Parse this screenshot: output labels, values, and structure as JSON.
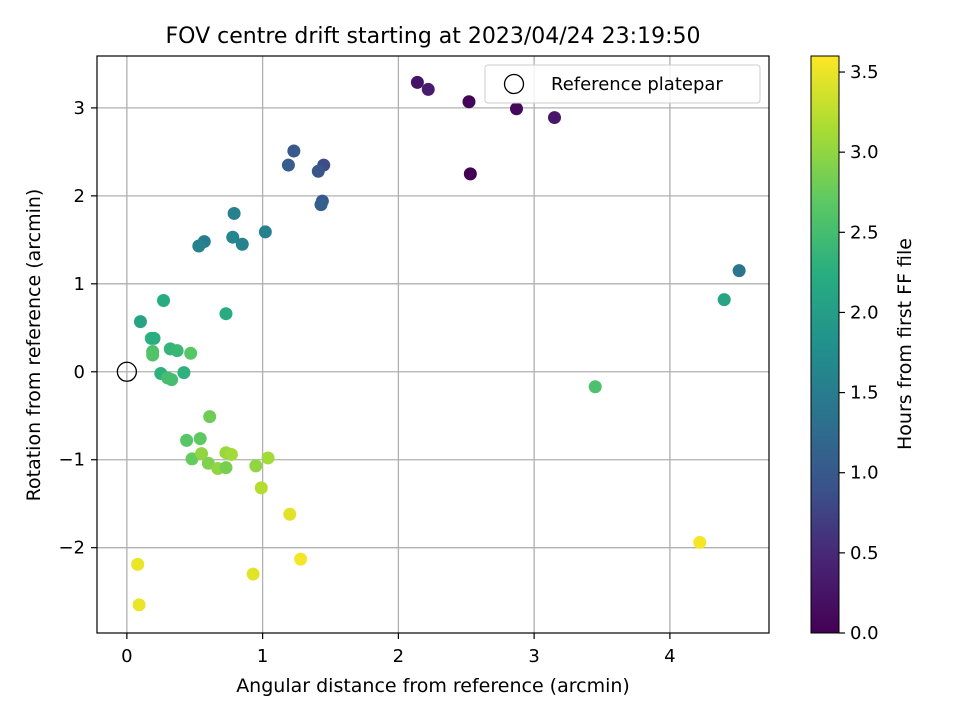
{
  "chart_data": {
    "type": "scatter",
    "title": "FOV centre drift starting at 2023/04/24 23:19:50",
    "xlabel": "Angular distance from reference (arcmin)",
    "ylabel": "Rotation from reference (arcmin)",
    "xlim": [
      -0.22,
      4.73
    ],
    "ylim": [
      -2.97,
      3.59
    ],
    "xticks": [
      0,
      1,
      2,
      3,
      4
    ],
    "yticks": [
      -2,
      -1,
      0,
      1,
      2,
      3
    ],
    "grid": true,
    "legend": {
      "placement": "top-right",
      "entries": [
        {
          "label": "Reference platepar",
          "marker": "open-circle"
        }
      ]
    },
    "reference_point": {
      "x": 0,
      "y": 0
    },
    "colorbar": {
      "label": "Hours from first FF file",
      "colormap": "viridis",
      "range": [
        0,
        3.6
      ],
      "ticks": [
        0.0,
        0.5,
        1.0,
        1.5,
        2.0,
        2.5,
        3.0,
        3.5
      ]
    },
    "points": [
      {
        "x": 2.14,
        "y": 3.29,
        "hours": 0.25
      },
      {
        "x": 2.22,
        "y": 3.21,
        "hours": 0.35
      },
      {
        "x": 2.52,
        "y": 3.07,
        "hours": 0.05
      },
      {
        "x": 2.87,
        "y": 2.99,
        "hours": 0.1
      },
      {
        "x": 3.15,
        "y": 2.89,
        "hours": 0.3
      },
      {
        "x": 2.53,
        "y": 2.25,
        "hours": 0.0
      },
      {
        "x": 1.23,
        "y": 2.51,
        "hours": 1.0
      },
      {
        "x": 1.19,
        "y": 2.35,
        "hours": 1.05
      },
      {
        "x": 1.45,
        "y": 2.35,
        "hours": 0.85
      },
      {
        "x": 1.41,
        "y": 2.28,
        "hours": 0.95
      },
      {
        "x": 1.44,
        "y": 1.94,
        "hours": 1.0
      },
      {
        "x": 1.43,
        "y": 1.9,
        "hours": 1.1
      },
      {
        "x": 0.79,
        "y": 1.8,
        "hours": 1.55
      },
      {
        "x": 0.57,
        "y": 1.48,
        "hours": 1.5
      },
      {
        "x": 0.53,
        "y": 1.43,
        "hours": 1.6
      },
      {
        "x": 0.78,
        "y": 1.53,
        "hours": 1.65
      },
      {
        "x": 0.85,
        "y": 1.45,
        "hours": 1.6
      },
      {
        "x": 1.02,
        "y": 1.59,
        "hours": 1.55
      },
      {
        "x": 4.51,
        "y": 1.15,
        "hours": 1.4
      },
      {
        "x": 4.4,
        "y": 0.82,
        "hours": 2.1
      },
      {
        "x": 0.27,
        "y": 0.81,
        "hours": 2.2
      },
      {
        "x": 0.1,
        "y": 0.57,
        "hours": 2.1
      },
      {
        "x": 0.73,
        "y": 0.66,
        "hours": 2.2
      },
      {
        "x": 0.18,
        "y": 0.38,
        "hours": 2.3
      },
      {
        "x": 0.2,
        "y": 0.38,
        "hours": 2.25
      },
      {
        "x": 0.19,
        "y": 0.23,
        "hours": 2.55
      },
      {
        "x": 0.19,
        "y": 0.19,
        "hours": 2.6
      },
      {
        "x": 0.32,
        "y": 0.26,
        "hours": 2.35
      },
      {
        "x": 0.37,
        "y": 0.24,
        "hours": 2.4
      },
      {
        "x": 0.47,
        "y": 0.21,
        "hours": 2.65
      },
      {
        "x": 0.25,
        "y": -0.02,
        "hours": 2.3
      },
      {
        "x": 0.3,
        "y": -0.07,
        "hours": 2.5
      },
      {
        "x": 0.33,
        "y": -0.09,
        "hours": 2.5
      },
      {
        "x": 0.42,
        "y": -0.01,
        "hours": 2.3
      },
      {
        "x": 3.45,
        "y": -0.17,
        "hours": 2.55
      },
      {
        "x": 0.61,
        "y": -0.51,
        "hours": 2.8
      },
      {
        "x": 0.44,
        "y": -0.78,
        "hours": 2.65
      },
      {
        "x": 0.54,
        "y": -0.76,
        "hours": 2.7
      },
      {
        "x": 0.48,
        "y": -0.99,
        "hours": 2.75
      },
      {
        "x": 0.55,
        "y": -0.93,
        "hours": 3.0
      },
      {
        "x": 0.6,
        "y": -1.04,
        "hours": 2.9
      },
      {
        "x": 0.67,
        "y": -1.1,
        "hours": 3.0
      },
      {
        "x": 0.73,
        "y": -1.09,
        "hours": 2.85
      },
      {
        "x": 0.73,
        "y": -0.92,
        "hours": 3.05
      },
      {
        "x": 0.77,
        "y": -0.94,
        "hours": 3.1
      },
      {
        "x": 0.95,
        "y": -1.07,
        "hours": 3.0
      },
      {
        "x": 1.04,
        "y": -0.98,
        "hours": 3.1
      },
      {
        "x": 0.99,
        "y": -1.32,
        "hours": 3.2
      },
      {
        "x": 1.2,
        "y": -1.62,
        "hours": 3.45
      },
      {
        "x": 4.22,
        "y": -1.94,
        "hours": 3.55
      },
      {
        "x": 0.08,
        "y": -2.19,
        "hours": 3.5
      },
      {
        "x": 1.28,
        "y": -2.13,
        "hours": 3.55
      },
      {
        "x": 0.93,
        "y": -2.3,
        "hours": 3.45
      },
      {
        "x": 0.09,
        "y": -2.65,
        "hours": 3.5
      }
    ]
  }
}
